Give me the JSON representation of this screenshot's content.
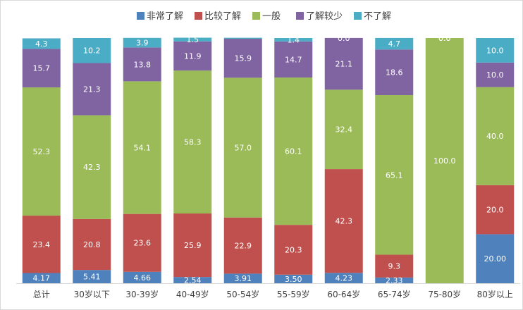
{
  "chart_data": {
    "type": "bar",
    "stacked": true,
    "categories": [
      "总计",
      "30岁以下",
      "30-39岁",
      "40-49岁",
      "50-54岁",
      "55-59岁",
      "60-64岁",
      "65-74岁",
      "75-80岁",
      "80岁以上"
    ],
    "series": [
      {
        "name": "非常了解",
        "color": "#4f81bd",
        "values": [
          4.17,
          5.41,
          4.66,
          2.54,
          3.91,
          3.5,
          4.23,
          2.33,
          0.0,
          20.0
        ],
        "labels": [
          "4.17",
          "5.41",
          "4.66",
          "2.54",
          "3.91",
          "3.50",
          "4.23",
          "2.33",
          "0.00",
          "20.00"
        ]
      },
      {
        "name": "比较了解",
        "color": "#c0504d",
        "values": [
          23.4,
          20.8,
          23.6,
          25.9,
          22.9,
          20.3,
          42.3,
          9.3,
          0.0,
          20.0
        ],
        "labels": [
          "23.4",
          "20.8",
          "23.6",
          "25.9",
          "22.9",
          "20.3",
          "42.3",
          "9.3",
          "0.0",
          "20.0"
        ]
      },
      {
        "name": "一般",
        "color": "#9bbb59",
        "values": [
          52.3,
          42.3,
          54.1,
          58.3,
          57.0,
          60.1,
          32.4,
          65.1,
          100.0,
          40.0
        ],
        "labels": [
          "52.3",
          "42.3",
          "54.1",
          "58.3",
          "57.0",
          "60.1",
          "32.4",
          "65.1",
          "100.0",
          "40.0"
        ]
      },
      {
        "name": "了解较少",
        "color": "#8064a2",
        "values": [
          15.7,
          21.3,
          13.8,
          11.9,
          15.9,
          14.7,
          21.1,
          18.6,
          0.0,
          10.0
        ],
        "labels": [
          "15.7",
          "21.3",
          "13.8",
          "11.9",
          "15.9",
          "14.7",
          "21.1",
          "18.6",
          "0.0",
          "10.0"
        ]
      },
      {
        "name": "不了解",
        "color": "#4bacc6",
        "values": [
          4.3,
          10.2,
          3.9,
          1.5,
          0.4,
          1.4,
          0.0,
          4.7,
          0.0,
          10.0
        ],
        "labels": [
          "4.3",
          "10.2",
          "3.9",
          "1.5",
          "",
          "1.4",
          "0.0",
          "4.7",
          "0.0",
          "10.0"
        ]
      }
    ],
    "ylim": [
      0,
      100
    ],
    "legend_position": "top",
    "grid": false
  }
}
